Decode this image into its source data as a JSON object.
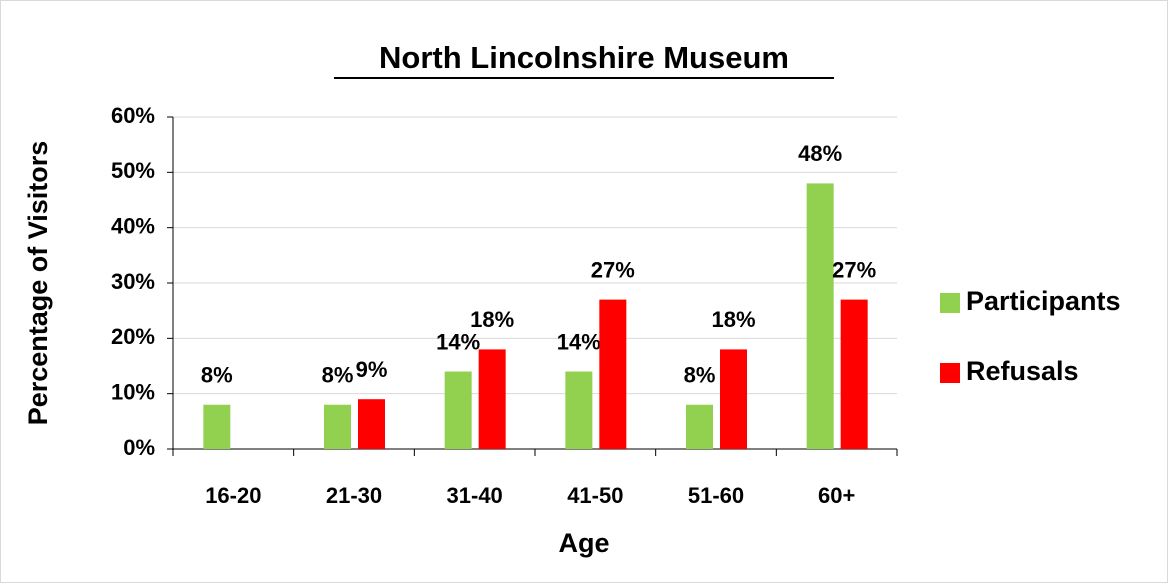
{
  "chart_data": {
    "type": "bar",
    "title": "North Lincolnshire Museum",
    "ylabel": "Percentage of Visitors",
    "xlabel": "Age",
    "categories": [
      "16-20",
      "21-30",
      "31-40",
      "41-50",
      "51-60",
      "60+"
    ],
    "series": [
      {
        "name": "Participants",
        "color": "#92d050",
        "values": [
          8,
          8,
          14,
          14,
          8,
          48
        ],
        "value_labels": [
          "8%",
          "8%",
          "14%",
          "14%",
          "8%",
          "48%"
        ]
      },
      {
        "name": "Refusals",
        "color": "#ff0000",
        "values": [
          null,
          9,
          18,
          27,
          18,
          27
        ],
        "value_labels": [
          null,
          "9%",
          "18%",
          "27%",
          "18%",
          "27%"
        ]
      }
    ],
    "ylim": [
      0,
      60
    ],
    "yticks": [
      {
        "value": 0,
        "label": "0%"
      },
      {
        "value": 10,
        "label": "10%"
      },
      {
        "value": 20,
        "label": "20%"
      },
      {
        "value": 30,
        "label": "30%"
      },
      {
        "value": 40,
        "label": "40%"
      },
      {
        "value": 50,
        "label": "50%"
      },
      {
        "value": 60,
        "label": "60%"
      }
    ],
    "grid": true,
    "legend": "right"
  }
}
